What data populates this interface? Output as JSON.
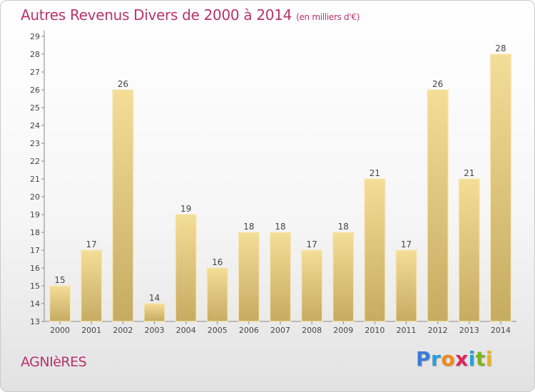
{
  "header": {
    "title": "Autres Revenus Divers de 2000 à 2014",
    "unit": "(en milliers d'€)"
  },
  "footer": {
    "commune": "AGNIèRES",
    "logo": {
      "letters": [
        {
          "ch": "P",
          "color": "#3a7bd5"
        },
        {
          "ch": "r",
          "color": "#2a9fd8"
        },
        {
          "ch": "o",
          "color": "#f08a1c"
        },
        {
          "ch": "x",
          "color": "#e0245e"
        },
        {
          "ch": "i",
          "color": "#2a9fd8"
        },
        {
          "ch": "t",
          "color": "#7ab51d"
        },
        {
          "ch": "i",
          "color": "#f0b21c"
        }
      ]
    }
  },
  "colors": {
    "title": "#b8326a",
    "bar_top": "#f4dd97",
    "bar_bottom": "#c6ab62",
    "axis": "#888888"
  },
  "chart_data": {
    "type": "bar",
    "title": "Autres Revenus Divers de 2000 à 2014",
    "subtitle": "(en milliers d'€)",
    "categories": [
      "2000",
      "2001",
      "2002",
      "2003",
      "2004",
      "2005",
      "2006",
      "2007",
      "2008",
      "2009",
      "2010",
      "2011",
      "2012",
      "2013",
      "2014"
    ],
    "values": [
      15,
      17,
      26,
      14,
      19,
      16,
      18,
      18,
      17,
      18,
      21,
      17,
      26,
      21,
      28
    ],
    "ylim": [
      13,
      29
    ],
    "yticks": [
      13,
      14,
      15,
      16,
      17,
      18,
      19,
      20,
      21,
      22,
      23,
      24,
      25,
      26,
      27,
      28,
      29
    ],
    "xlabel": "",
    "ylabel": "",
    "grid": false,
    "legend": "none"
  }
}
